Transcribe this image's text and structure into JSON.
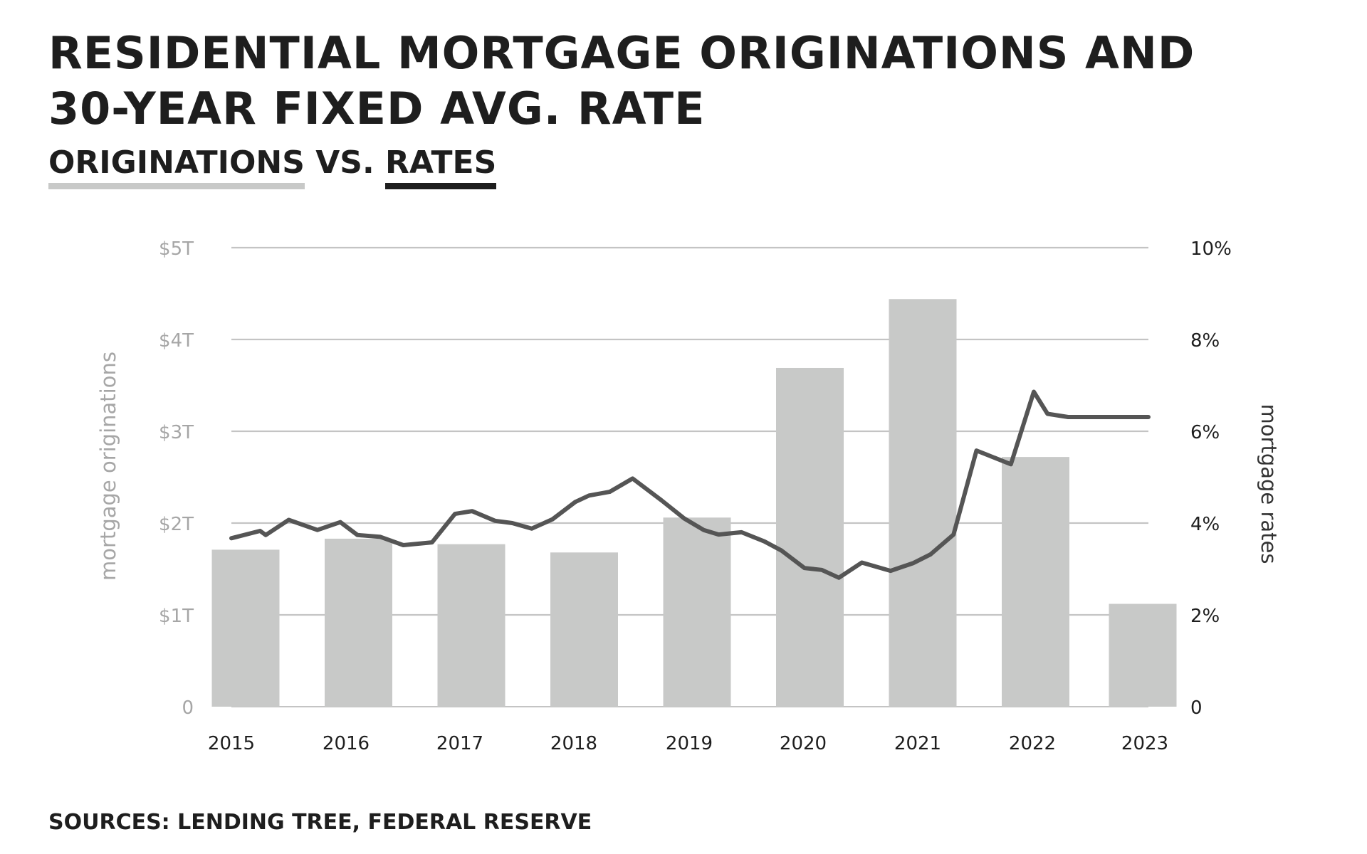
{
  "header": {
    "title_line1": "RESIDENTIAL MORTGAGE ORIGINATIONS AND",
    "title_line2": "30-YEAR FIXED AVG. RATE",
    "subtitle_originations": "ORIGINATIONS",
    "subtitle_vs": " VS. ",
    "subtitle_rates": "RATES"
  },
  "footer": {
    "source": "SOURCES: LENDING TREE, FEDERAL RESERVE"
  },
  "colors": {
    "bars": "#c8c9c8",
    "line": "#555555",
    "grid": "#c4c4c4",
    "left_axis_text": "#a6a6a6",
    "right_axis_text": "#1e1e1e",
    "title": "#1e1e1e"
  },
  "chart_data": {
    "type": "bar",
    "title": "RESIDENTIAL MORTGAGE ORIGINATIONS AND 30-YEAR FIXED AVG. RATE",
    "subtitle": "ORIGINATIONS VS. RATES",
    "categories": [
      "2015",
      "2016",
      "2017",
      "2018",
      "2019",
      "2020",
      "2021",
      "2022",
      "2023"
    ],
    "ylabel": "mortgage originations",
    "y2label": "mortgage rates",
    "ylim": [
      0,
      5
    ],
    "y2lim": [
      0,
      10
    ],
    "y_ticks": [
      {
        "value": 0,
        "label": "0"
      },
      {
        "value": 1,
        "label": "$1T"
      },
      {
        "value": 2,
        "label": "$2T"
      },
      {
        "value": 3,
        "label": "$3T"
      },
      {
        "value": 4,
        "label": "$4T"
      },
      {
        "value": 5,
        "label": "$5T"
      }
    ],
    "y2_ticks": [
      {
        "value": 0,
        "label": "0"
      },
      {
        "value": 2,
        "label": "2%"
      },
      {
        "value": 4,
        "label": "4%"
      },
      {
        "value": 6,
        "label": "6%"
      },
      {
        "value": 8,
        "label": "8%"
      },
      {
        "value": 10,
        "label": "10%"
      }
    ],
    "grid": true,
    "series": [
      {
        "type": "bar",
        "axis": "left",
        "unit": "trillion USD",
        "values": [
          1.71,
          1.83,
          1.77,
          1.68,
          2.06,
          3.69,
          4.44,
          2.72,
          1.12
        ]
      },
      {
        "type": "line",
        "axis": "right",
        "unit": "percent",
        "x": [
          2015.0,
          2015.25,
          2015.3,
          2015.5,
          2015.75,
          2015.95,
          2016.1,
          2016.3,
          2016.5,
          2016.75,
          2016.95,
          2017.1,
          2017.3,
          2017.45,
          2017.62,
          2017.8,
          2018.0,
          2018.12,
          2018.3,
          2018.5,
          2018.75,
          2018.95,
          2019.12,
          2019.25,
          2019.45,
          2019.65,
          2019.8,
          2020.0,
          2020.15,
          2020.3,
          2020.5,
          2020.75,
          2020.95,
          2021.1,
          2021.3,
          2021.5,
          2021.8,
          2022.0,
          2022.12,
          2022.3,
          2022.5,
          2022.65,
          2022.8,
          2022.95,
          2023.0
        ],
        "values": [
          3.67,
          3.83,
          3.74,
          4.07,
          3.85,
          4.02,
          3.74,
          3.7,
          3.52,
          3.58,
          4.2,
          4.26,
          4.05,
          4.0,
          3.88,
          4.08,
          4.46,
          4.6,
          4.68,
          4.97,
          4.5,
          4.1,
          3.85,
          3.75,
          3.8,
          3.6,
          3.4,
          3.02,
          2.98,
          2.81,
          3.14,
          2.96,
          3.13,
          3.32,
          3.75,
          5.58,
          5.28,
          6.86,
          6.38,
          6.31,
          6.31,
          6.31,
          6.31,
          6.31,
          6.31
        ]
      }
    ]
  }
}
